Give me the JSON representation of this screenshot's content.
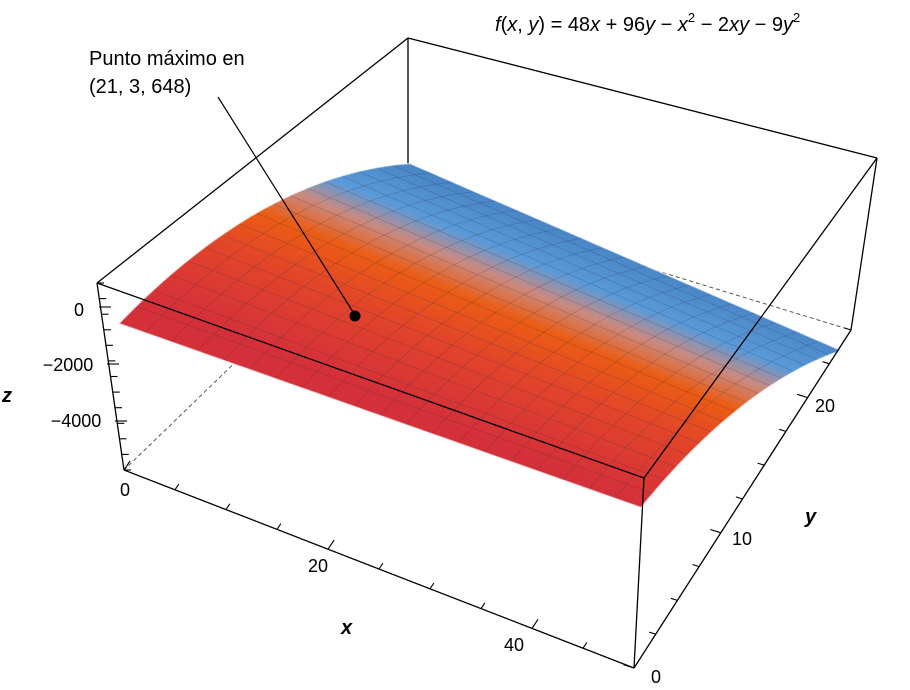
{
  "title_parts": {
    "fx": "f",
    "args_open": "(",
    "var_x": "x",
    "comma": ", ",
    "var_y": "y",
    "args_close": ") = 48",
    "t_x1": "x",
    "plus": " + 96",
    "t_y1": "y",
    "minus1": " − ",
    "t_x2": "x",
    "sq1": "2",
    "minus2": " − 2",
    "t_xy": "xy",
    "minus3": " − 9",
    "t_y2": "y",
    "sq2": "2"
  },
  "annotation": {
    "line1": "Punto máximo en",
    "line2": "(21, 3, 648)"
  },
  "axes": {
    "x_label": "x",
    "y_label": "y",
    "z_label": "z",
    "x_ticks": [
      "0",
      "20",
      "40"
    ],
    "y_ticks": [
      "0",
      "10",
      "20"
    ],
    "z_ticks": [
      "0",
      "−2000",
      "−4000"
    ]
  },
  "colors": {
    "surface_low": "#d8333a",
    "surface_mid": "#e8561c",
    "surface_high": "#4a92d6",
    "surface_top": "#3f7fc4",
    "frame": "#000000"
  },
  "chart_data": {
    "type": "surface",
    "function": "f(x, y) = 48x + 96y − x² − 2xy − 9y²",
    "max_point": [
      21,
      3,
      648
    ],
    "x_range": [
      0,
      50
    ],
    "y_range": [
      0,
      25
    ],
    "z_ticks": [
      0,
      -2000,
      -4000
    ]
  }
}
